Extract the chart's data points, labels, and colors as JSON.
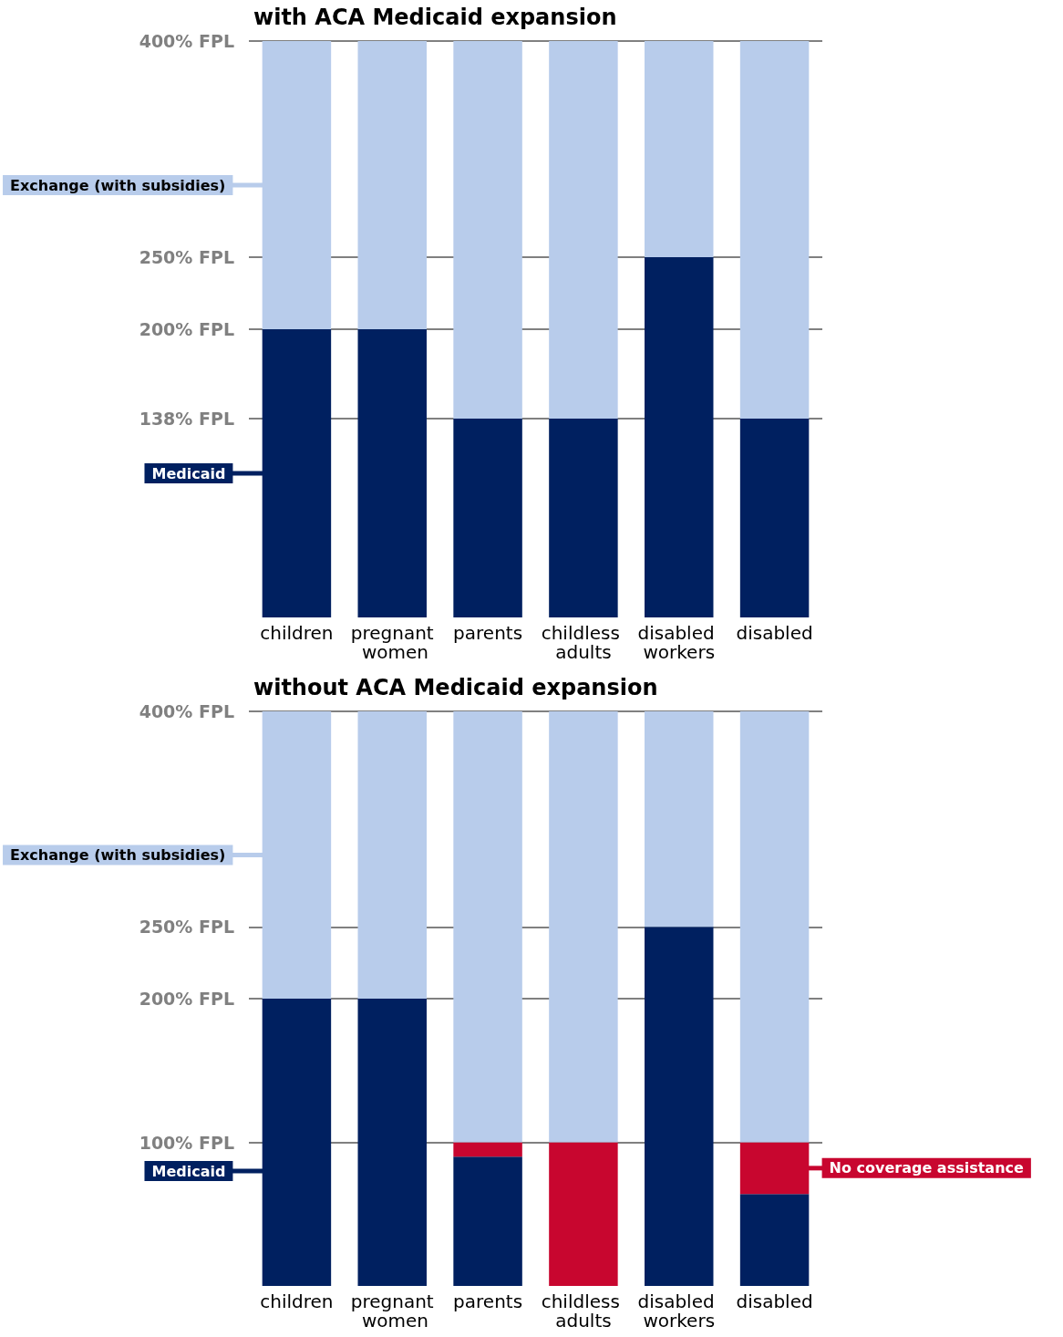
{
  "chart_data": [
    {
      "type": "bar",
      "title": "with ACA Medicaid expansion",
      "categories": [
        "children",
        "pregnant women",
        "parents",
        "childless adults",
        "disabled workers",
        "disabled"
      ],
      "stacked": true,
      "legend": "left",
      "grid": "y",
      "ylim": [
        0,
        400
      ],
      "yticks": [
        {
          "value": 138,
          "label": "138% FPL"
        },
        {
          "value": 200,
          "label": "200% FPL"
        },
        {
          "value": 250,
          "label": "250% FPL"
        },
        {
          "value": 400,
          "label": "400% FPL"
        }
      ],
      "series": [
        {
          "name": "Medicaid",
          "color": "#002060",
          "values": [
            200,
            200,
            138,
            138,
            250,
            138
          ]
        },
        {
          "name": "Exchange (with subsidies)",
          "color": "#b8cceb",
          "values": [
            200,
            200,
            262,
            262,
            150,
            262
          ]
        }
      ]
    },
    {
      "type": "bar",
      "title": "without ACA Medicaid expansion",
      "categories": [
        "children",
        "pregnant women",
        "parents",
        "childless adults",
        "disabled workers",
        "disabled"
      ],
      "stacked": true,
      "legend": "left",
      "grid": "y",
      "ylim": [
        0,
        400
      ],
      "yticks": [
        {
          "value": 100,
          "label": "100% FPL"
        },
        {
          "value": 200,
          "label": "200% FPL"
        },
        {
          "value": 250,
          "label": "250% FPL"
        },
        {
          "value": 400,
          "label": "400% FPL"
        }
      ],
      "series": [
        {
          "name": "Medicaid",
          "color": "#002060",
          "values": [
            200,
            200,
            90,
            0,
            250,
            64
          ]
        },
        {
          "name": "No coverage assistance",
          "color": "#c8062f",
          "values": [
            0,
            0,
            10,
            100,
            0,
            36
          ]
        },
        {
          "name": "Exchange (with subsidies)",
          "color": "#b8cceb",
          "values": [
            200,
            200,
            300,
            300,
            150,
            300
          ]
        }
      ]
    }
  ]
}
